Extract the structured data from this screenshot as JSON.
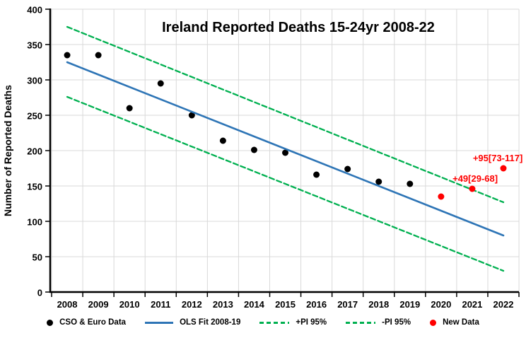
{
  "chart_data": {
    "type": "scatter",
    "title": "Ireland Reported Deaths 15-24yr 2008-22",
    "ylabel": "Number of Reported Deaths",
    "xlabel": "",
    "x_ticks": [
      "2008",
      "2009",
      "2010",
      "2011",
      "2012",
      "2013",
      "2014",
      "2015",
      "2016",
      "2017",
      "2018",
      "2019",
      "2020",
      "2021",
      "2022"
    ],
    "y_ticks": [
      0,
      50,
      100,
      150,
      200,
      250,
      300,
      350,
      400
    ],
    "ylim": [
      0,
      400
    ],
    "grid": true,
    "legend_position": "bottom",
    "series": [
      {
        "name": "CSO & Euro Data",
        "kind": "scatter",
        "legend_marker": "dot",
        "color": "#000000",
        "x": [
          2008,
          2009,
          2010,
          2011,
          2012,
          2013,
          2014,
          2015,
          2016,
          2017,
          2018,
          2019
        ],
        "y": [
          335,
          335,
          260,
          295,
          250,
          214,
          201,
          197,
          166,
          174,
          156,
          153
        ]
      },
      {
        "name": "OLS Fit 2008-19",
        "kind": "line",
        "legend_marker": "line",
        "color": "#2E75B6",
        "x": [
          2008,
          2022
        ],
        "y": [
          325,
          80
        ]
      },
      {
        "name": "+PI 95%",
        "kind": "dashed",
        "legend_marker": "dash",
        "color": "#00B050",
        "x": [
          2008,
          2022
        ],
        "y": [
          375,
          127
        ]
      },
      {
        "name": "-PI 95%",
        "kind": "dashed",
        "legend_marker": "dash",
        "color": "#00B050",
        "x": [
          2008,
          2022
        ],
        "y": [
          276,
          30
        ]
      },
      {
        "name": "New Data",
        "kind": "scatter",
        "legend_marker": "dot",
        "color": "#FF0000",
        "x": [
          2020,
          2021,
          2022
        ],
        "y": [
          135,
          146,
          175
        ]
      }
    ],
    "annotations": [
      {
        "text": "+49[29-68]",
        "x": 2021.82,
        "y": 160,
        "color": "#FF0000",
        "anchor": "end"
      },
      {
        "text": "+95[73-117]",
        "x": 2022.62,
        "y": 189,
        "color": "#FF0000",
        "anchor": "end"
      }
    ]
  },
  "colors": {
    "grid": "#D9D9D9",
    "axis": "#000000",
    "text": "#000000",
    "background": "#FFFFFF"
  }
}
